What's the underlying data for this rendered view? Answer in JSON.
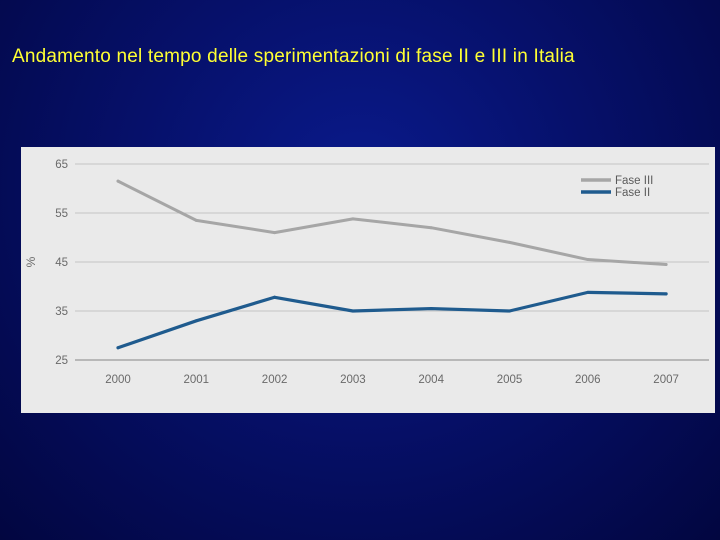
{
  "slide": {
    "title": "Andamento nel tempo delle sperimentazioni di fase II e III in Italia"
  },
  "colors": {
    "title": "#ffff33",
    "fase_iii": "#a6a6a6",
    "fase_ii": "#1f5b8e",
    "panel": "#eaeaea"
  },
  "chart_data": {
    "type": "line",
    "title": "",
    "xlabel": "",
    "ylabel": "%",
    "categories": [
      "2000",
      "2001",
      "2002",
      "2003",
      "2004",
      "2005",
      "2006",
      "2007"
    ],
    "ylim": [
      25,
      65
    ],
    "yticks": [
      25,
      35,
      45,
      55,
      65
    ],
    "grid": "horizontal",
    "legend": "top-right",
    "series": [
      {
        "name": "Fase III",
        "color": "#a6a6a6",
        "values": [
          61.5,
          53.5,
          51.0,
          53.8,
          52.0,
          49.0,
          45.5,
          44.5
        ]
      },
      {
        "name": "Fase II",
        "color": "#1f5b8e",
        "values": [
          27.5,
          33.0,
          37.8,
          35.0,
          35.5,
          35.0,
          38.8,
          38.5
        ]
      }
    ]
  }
}
